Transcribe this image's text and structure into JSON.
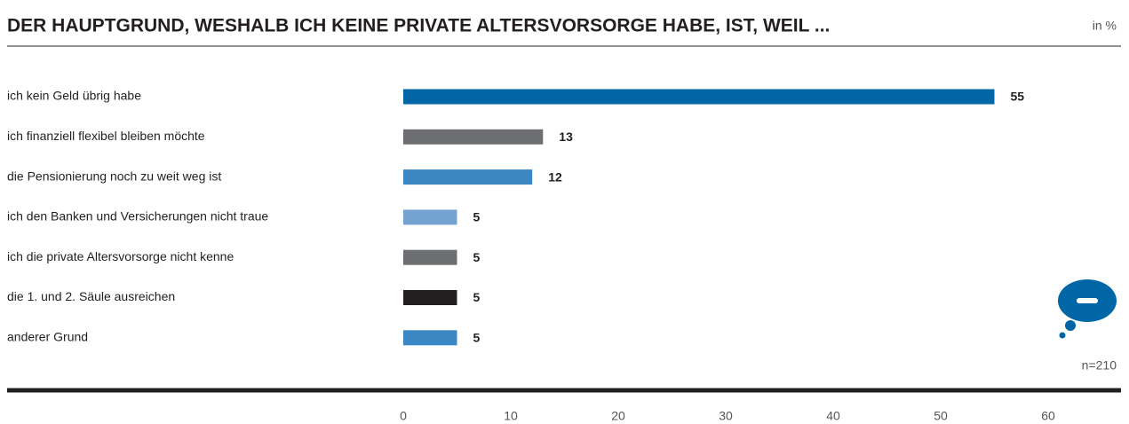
{
  "chart_data": {
    "type": "hbar",
    "title": "DER HAUPTGRUND, WESHALB ICH KEINE PRIVATE ALTERSVORSORGE HABE, IST, WEIL ...",
    "unit_label": "in %",
    "note": "n=210",
    "categories": [
      "ich kein Geld übrig habe",
      "ich finanziell flexibel bleiben möchte",
      "die Pensionierung noch zu weit weg ist",
      "ich den Banken und Versicherungen nicht traue",
      "ich die private Altersvorsorge nicht kenne",
      "die 1. und 2. Säule ausreichen",
      "anderer Grund"
    ],
    "values": [
      55,
      13,
      12,
      5,
      5,
      5,
      5
    ],
    "colors": [
      "#0066a6",
      "#6d6e71",
      "#3a87c4",
      "#75a3d1",
      "#6d6e71",
      "#231f20",
      "#3a87c4"
    ],
    "xlim": [
      0,
      60
    ],
    "xticks": [
      0,
      10,
      20,
      30,
      40,
      50,
      60
    ],
    "grid": false
  }
}
